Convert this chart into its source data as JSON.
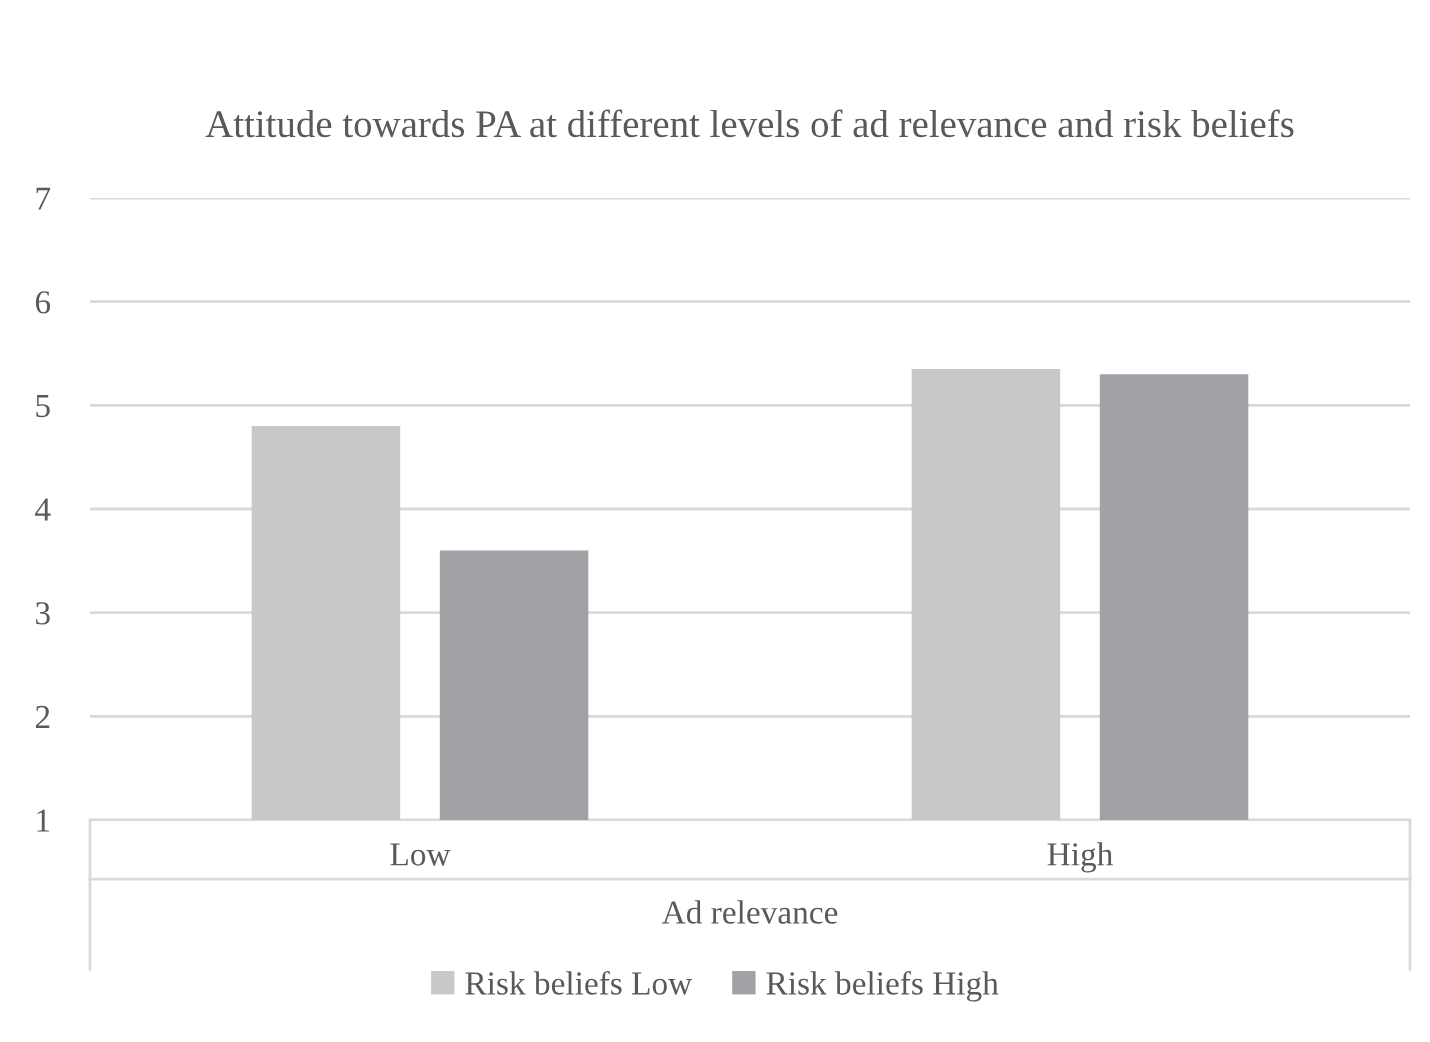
{
  "chart_data": {
    "type": "bar",
    "title": "Attitude towards PA at different levels of ad relevance and risk beliefs",
    "xlabel": "Ad relevance",
    "categories": [
      "Low",
      "High"
    ],
    "series": [
      {
        "name": "Risk beliefs Low",
        "color": "#c7c8ca",
        "values": [
          4.8,
          5.35
        ]
      },
      {
        "name": "Risk beliefs High",
        "color": "#a2a2a6",
        "values": [
          3.6,
          5.3
        ]
      }
    ],
    "ylim": [
      1,
      7
    ],
    "yticks": [
      1,
      2,
      3,
      4,
      5,
      6,
      7
    ],
    "grid": "y",
    "legend": "bottom"
  }
}
